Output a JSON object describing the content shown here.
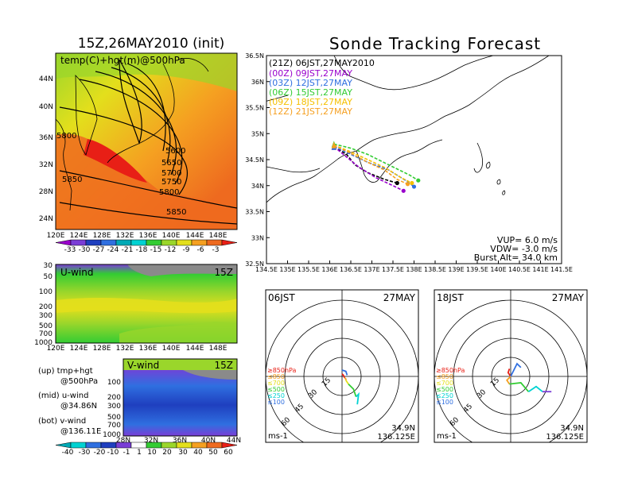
{
  "titles": {
    "left": "15Z,26MAY2010 (init)",
    "right": "Sonde Tracking Forecast"
  },
  "colors": {
    "purple": "#9900cc",
    "violet": "#7a3dd6",
    "navy": "#1f3fbf",
    "blue": "#2f6fe0",
    "teal": "#00a9b5",
    "cyan": "#00d2d2",
    "green": "#33cc33",
    "lime": "#9ad62b",
    "yellow": "#e3df1c",
    "orange": "#f5a021",
    "dkorange": "#ee6a1f",
    "red": "#e81f16",
    "grey": "#8a8a8a"
  },
  "chart_data": [
    {
      "id": "temp_hgt_map",
      "type": "heatmap",
      "label": "temp(C)+hgt(m)@500hPa",
      "x_ticks": [
        "120E",
        "124E",
        "128E",
        "132E",
        "136E",
        "140E",
        "144E",
        "148E"
      ],
      "y_ticks": [
        "24N",
        "28N",
        "32N",
        "36N",
        "40N",
        "44N"
      ],
      "xlim": [
        120,
        150
      ],
      "ylim": [
        22,
        48
      ],
      "contour_labels": [
        "5600",
        "5650",
        "5700",
        "5750",
        "5800",
        "5850",
        "5850",
        "5800"
      ],
      "colorbar": {
        "labels": [
          "-33",
          "-30",
          "-27",
          "-24",
          "-21",
          "-18",
          "-15",
          "-12",
          "-9",
          "-6",
          "-3"
        ],
        "colors": [
          "#9900cc",
          "#7a3dd6",
          "#1f3fbf",
          "#2f6fe0",
          "#00a9b5",
          "#00d2d2",
          "#33cc33",
          "#9ad62b",
          "#e3df1c",
          "#f5a021",
          "#ee6a1f",
          "#e81f16"
        ]
      }
    },
    {
      "id": "u_wind",
      "type": "heatmap",
      "label": "U-wind",
      "time": "15Z",
      "x_ticks": [
        "120E",
        "124E",
        "128E",
        "132E",
        "136E",
        "140E",
        "144E",
        "148E"
      ],
      "y_ticks": [
        "30",
        "50",
        "100",
        "200",
        "300",
        "500",
        "700",
        "1000"
      ]
    },
    {
      "id": "v_wind",
      "type": "heatmap",
      "label": "V-wind",
      "time": "15Z",
      "x_ticks": [
        "28N",
        "32N",
        "36N",
        "40N",
        "44N"
      ],
      "y_ticks": [
        "100",
        "200",
        "300",
        "500",
        "700",
        "1000"
      ],
      "colorbar": {
        "labels": [
          "-40",
          "-30",
          "-20",
          "-10",
          "-1",
          "1",
          "10",
          "20",
          "30",
          "40",
          "50",
          "60"
        ],
        "colors": [
          "#00a9b5",
          "#00d2d2",
          "#2f6fe0",
          "#1f3fbf",
          "#7a3dd6",
          "#ffffff",
          "#33cc33",
          "#9ad62b",
          "#e3df1c",
          "#f5a021",
          "#ee6a1f",
          "#e81f16"
        ]
      }
    },
    {
      "id": "track_map",
      "type": "line",
      "xlabel": "",
      "ylabel": "",
      "xlim": [
        134.5,
        141.5
      ],
      "ylim": [
        32.5,
        36.5
      ],
      "x_ticks": [
        "134.5E",
        "135E",
        "135.5E",
        "136E",
        "136.5E",
        "137E",
        "137.5E",
        "138E",
        "138.5E",
        "139E",
        "139.5E",
        "140E",
        "140.5E",
        "141E",
        "141.5E"
      ],
      "y_ticks": [
        "32.5N",
        "33N",
        "33.5N",
        "34N",
        "34.5N",
        "35N",
        "35.5N",
        "36N",
        "36.5N"
      ],
      "legend": [
        {
          "label": "(21Z)  06JST,27MAY2010",
          "color": "#000000"
        },
        {
          "label": "(00Z)  09JST,27MAY",
          "color": "#9900cc"
        },
        {
          "label": "(03Z)  12JST,27MAY",
          "color": "#2f6fe0"
        },
        {
          "label": "(06Z)  15JST,27MAY",
          "color": "#33cc33"
        },
        {
          "label": "(09Z)  18JST,27MAY",
          "color": "#f5c000"
        },
        {
          "label": "(12Z)  21JST,27MAY",
          "color": "#f5a021"
        }
      ],
      "series": [
        {
          "name": "(21Z)  06JST,27MAY2010",
          "color": "#000000",
          "x": [
            136.1,
            136.4,
            136.6,
            136.9,
            137.3,
            137.6
          ],
          "y": [
            34.75,
            34.6,
            34.4,
            34.25,
            34.12,
            34.05
          ]
        },
        {
          "name": "(00Z)  09JST,27MAY",
          "color": "#9900cc",
          "x": [
            136.1,
            136.4,
            136.7,
            137.1,
            137.5,
            137.75
          ],
          "y": [
            34.75,
            34.55,
            34.35,
            34.15,
            34.0,
            33.9
          ]
        },
        {
          "name": "(03Z)  12JST,27MAY",
          "color": "#2f6fe0",
          "x": [
            136.1,
            136.5,
            136.9,
            137.4,
            137.8,
            138.0
          ],
          "y": [
            34.75,
            34.6,
            34.45,
            34.3,
            34.1,
            33.98
          ]
        },
        {
          "name": "(06Z)  15JST,27MAY",
          "color": "#33cc33",
          "x": [
            136.1,
            136.5,
            136.9,
            137.4,
            137.9,
            138.1
          ],
          "y": [
            34.8,
            34.72,
            34.6,
            34.4,
            34.2,
            34.1
          ]
        },
        {
          "name": "(09Z)  18JST,27MAY",
          "color": "#f5c000",
          "x": [
            136.1,
            136.5,
            136.9,
            137.3,
            137.7,
            137.95
          ],
          "y": [
            34.78,
            34.65,
            34.5,
            34.35,
            34.15,
            34.05
          ]
        },
        {
          "name": "(12Z)  21JST,27MAY",
          "color": "#f5a021",
          "x": [
            136.1,
            136.5,
            136.9,
            137.3,
            137.6,
            137.85
          ],
          "y": [
            34.78,
            34.62,
            34.45,
            34.3,
            34.12,
            34.03
          ]
        }
      ],
      "params": {
        "vup": "VUP=  6.0  m/s",
        "vdw": "VDW=  -3.0  m/s",
        "burst": "Burst  Alt=  34.0  km"
      }
    },
    {
      "id": "hodograph_06",
      "type": "line",
      "time": "06JST",
      "date": "27MAY",
      "ring_labels": [
        "15",
        "30",
        "45",
        "60"
      ],
      "level_legend": [
        {
          "label": "≥850hPa",
          "color": "#e81f16"
        },
        {
          "label": "≤850",
          "color": "#f5a021"
        },
        {
          "label": "≤700",
          "color": "#e3df1c"
        },
        {
          "label": "≤500",
          "color": "#33cc33"
        },
        {
          "label": "≤250",
          "color": "#00d2d2"
        },
        {
          "label": "≤100",
          "color": "#2f6fe0"
        }
      ],
      "units": "ms-1",
      "location": {
        "lat": "34.9N",
        "lon": "136.125E"
      },
      "segments": [
        {
          "color": "#e81f16",
          "u": [
            0,
            1,
            2
          ],
          "v": [
            2,
            1,
            -1
          ]
        },
        {
          "color": "#2f6fe0",
          "u": [
            0,
            3,
            4
          ],
          "v": [
            5,
            4,
            1
          ]
        },
        {
          "color": "#f5a021",
          "u": [
            2,
            3,
            3
          ],
          "v": [
            -1,
            -2,
            -3
          ]
        },
        {
          "color": "#e3df1c",
          "u": [
            3,
            5
          ],
          "v": [
            -3,
            -6
          ]
        },
        {
          "color": "#33cc33",
          "u": [
            5,
            9,
            11
          ],
          "v": [
            -6,
            -10,
            -16
          ]
        },
        {
          "color": "#00d2d2",
          "u": [
            11,
            13,
            12
          ],
          "v": [
            -16,
            -14,
            -22
          ]
        }
      ]
    },
    {
      "id": "hodograph_18",
      "type": "line",
      "time": "18JST",
      "date": "27MAY",
      "ring_labels": [
        "15",
        "30",
        "45",
        "60"
      ],
      "level_legend": [
        {
          "label": "≥850hPa",
          "color": "#e81f16"
        },
        {
          "label": "≤850",
          "color": "#f5a021"
        },
        {
          "label": "≤700",
          "color": "#e3df1c"
        },
        {
          "label": "≤500",
          "color": "#33cc33"
        },
        {
          "label": "≤250",
          "color": "#00d2d2"
        },
        {
          "label": "≤100",
          "color": "#2f6fe0"
        }
      ],
      "units": "ms-1",
      "location": {
        "lat": "34.9N",
        "lon": "136.125E"
      },
      "segments": [
        {
          "color": "#e81f16",
          "u": [
            0,
            -2,
            -1
          ],
          "v": [
            0,
            3,
            6
          ]
        },
        {
          "color": "#f5a021",
          "u": [
            0,
            -3,
            -1
          ],
          "v": [
            0,
            -3,
            -6
          ]
        },
        {
          "color": "#2f6fe0",
          "u": [
            0,
            5,
            8
          ],
          "v": [
            0,
            10,
            7
          ]
        },
        {
          "color": "#33cc33",
          "u": [
            -1,
            8,
            14
          ],
          "v": [
            -6,
            -5,
            -12
          ]
        },
        {
          "color": "#00d2d2",
          "u": [
            14,
            20,
            25
          ],
          "v": [
            -12,
            -8,
            -12
          ]
        },
        {
          "color": "#7a3dd6",
          "u": [
            25,
            32
          ],
          "v": [
            -12,
            -12
          ]
        }
      ]
    }
  ],
  "bottom_legend": {
    "l1": "(up) tmp+hgt",
    "l2": "@500hPa",
    "l3": "(mid) u-wind",
    "l4": "@34.86N",
    "l5": "(bot) v-wind",
    "l6": "@136.11E"
  }
}
